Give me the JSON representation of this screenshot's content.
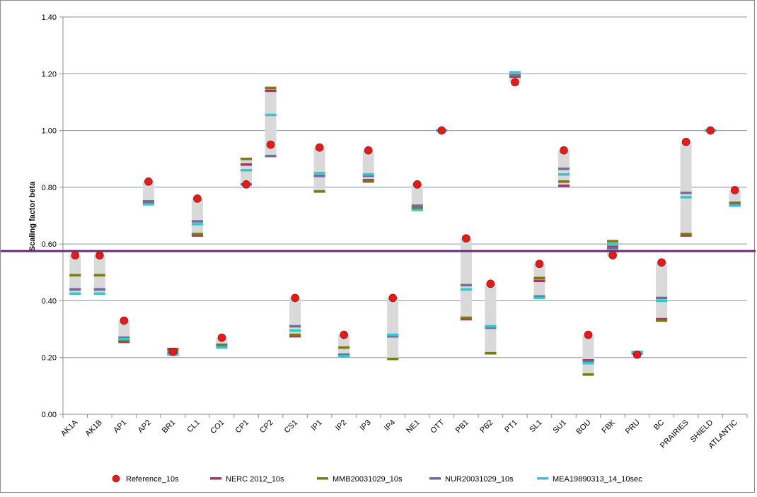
{
  "chart_data": {
    "type": "range-marker",
    "title": "",
    "xlabel": "",
    "ylabel": "Scaling factor beta",
    "ylim": [
      0,
      1.4
    ],
    "yticks": [
      "0.00",
      "0.20",
      "0.40",
      "0.60",
      "0.80",
      "1.00",
      "1.20",
      "1.40"
    ],
    "ytick_values": [
      0,
      0.2,
      0.4,
      0.6,
      0.8,
      1.0,
      1.2,
      1.4
    ],
    "grid": true,
    "legend_position": "bottom",
    "reference_line": {
      "y": 0.575,
      "color": "#6a2a7a"
    },
    "categories": [
      "AK1A",
      "AK1B",
      "AP1",
      "AP2",
      "BR1",
      "CL1",
      "CO1",
      "CP1",
      "CP2",
      "CS1",
      "IP1",
      "IP2",
      "IP3",
      "IP4",
      "NE1",
      "OTT",
      "PB1",
      "PB2",
      "PT1",
      "SL1",
      "SU1",
      "BOU",
      "FBK",
      "PRU",
      "BC",
      "PRAIRIES",
      "SHIELD",
      "ATLANTIC"
    ],
    "series": [
      {
        "name": "Reference_10s",
        "marker": "circle",
        "color": "#e21b1b",
        "values": [
          0.56,
          0.56,
          0.33,
          0.82,
          0.22,
          0.76,
          0.27,
          0.81,
          0.95,
          0.41,
          0.94,
          0.28,
          0.93,
          0.41,
          0.81,
          1.0,
          0.62,
          0.46,
          1.17,
          0.53,
          0.93,
          0.28,
          0.56,
          0.21,
          0.535,
          0.96,
          1.0,
          0.79
        ]
      },
      {
        "name": "NERC 2012_10s",
        "marker": "dash",
        "color": "#a3386a",
        "values": [
          0.44,
          0.44,
          0.255,
          0.75,
          0.23,
          0.63,
          0.24,
          0.88,
          1.14,
          0.275,
          0.84,
          0.21,
          0.825,
          0.275,
          0.725,
          1.0,
          0.335,
          0.215,
          1.19,
          0.47,
          0.805,
          0.19,
          0.59,
          0.215,
          0.335,
          0.63,
          1.0,
          0.745
        ]
      },
      {
        "name": "MMB20031029_10s",
        "marker": "dash",
        "color": "#7a7a12",
        "values": [
          0.49,
          0.49,
          0.26,
          0.745,
          0.225,
          0.635,
          0.245,
          0.9,
          1.15,
          0.28,
          0.785,
          0.235,
          0.82,
          0.195,
          0.73,
          1.0,
          0.34,
          0.215,
          1.195,
          0.48,
          0.82,
          0.14,
          0.61,
          0.22,
          0.33,
          0.635,
          1.0,
          0.745
        ]
      },
      {
        "name": "NUR20031029_10s",
        "marker": "dash",
        "color": "#6f6f9a",
        "values": [
          0.44,
          0.44,
          0.27,
          0.75,
          0.215,
          0.68,
          0.24,
          0.81,
          0.91,
          0.31,
          0.84,
          0.21,
          0.84,
          0.275,
          0.735,
          1.0,
          0.455,
          0.305,
          1.195,
          0.415,
          0.865,
          0.185,
          0.585,
          0.215,
          0.41,
          0.78,
          1.0,
          0.74
        ]
      },
      {
        "name": "MEA19890313_14_10sec",
        "marker": "dash",
        "color": "#37c3cf",
        "values": [
          0.425,
          0.425,
          0.265,
          0.74,
          0.21,
          0.67,
          0.235,
          0.86,
          1.055,
          0.295,
          0.85,
          0.205,
          0.845,
          0.28,
          0.72,
          1.0,
          0.44,
          0.31,
          1.205,
          0.41,
          0.845,
          0.18,
          0.6,
          0.22,
          0.4,
          0.765,
          1.0,
          0.735
        ]
      }
    ]
  }
}
